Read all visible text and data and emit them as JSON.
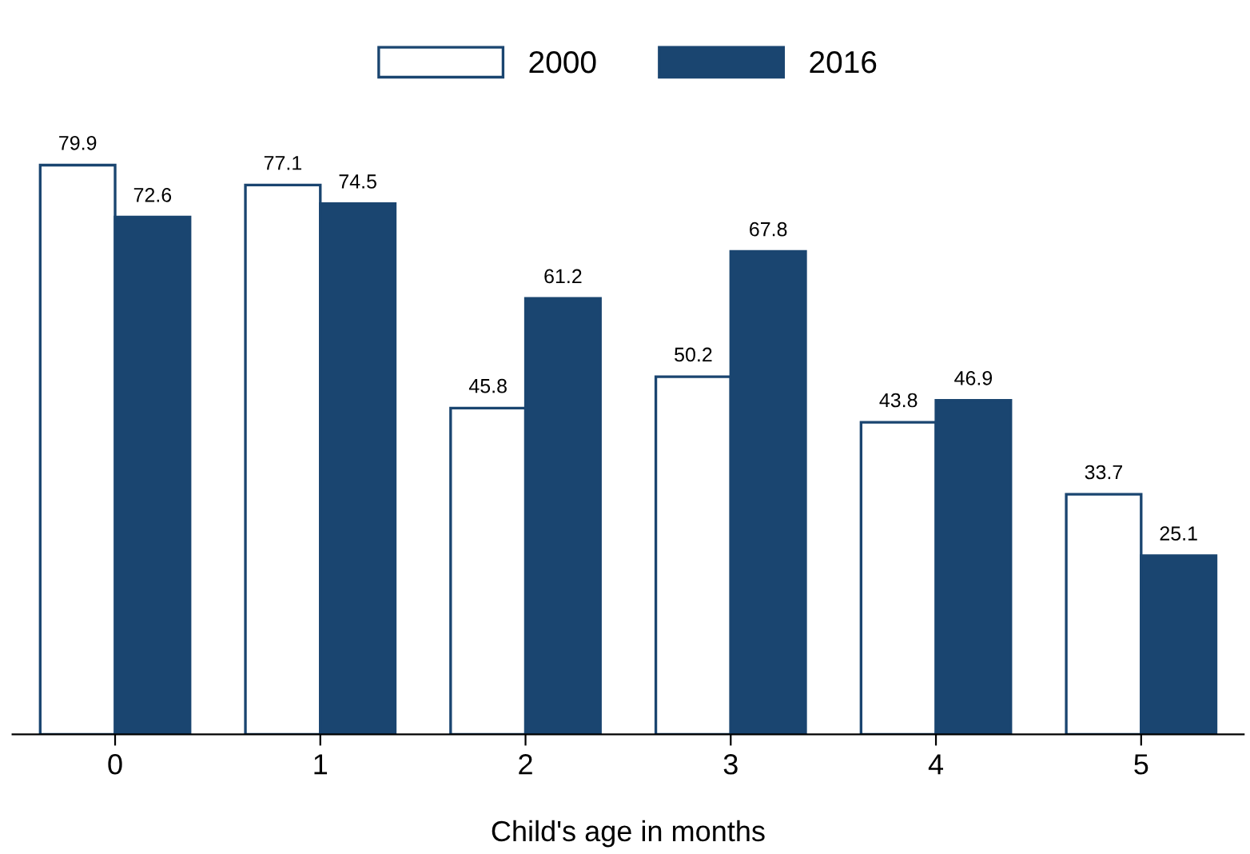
{
  "chart_data": {
    "type": "bar",
    "xlabel": "Child's age in months",
    "categories": [
      "0",
      "1",
      "2",
      "3",
      "4",
      "5"
    ],
    "series": [
      {
        "name": "2000",
        "color": "#ffffff",
        "values": [
          79.9,
          77.1,
          45.8,
          50.2,
          43.8,
          33.7
        ]
      },
      {
        "name": "2016",
        "color": "#1a4570",
        "values": [
          72.6,
          74.5,
          61.2,
          67.8,
          46.9,
          25.1
        ]
      }
    ],
    "tick_labels": "x",
    "data_labels": true,
    "legend": "top",
    "grid": false
  }
}
